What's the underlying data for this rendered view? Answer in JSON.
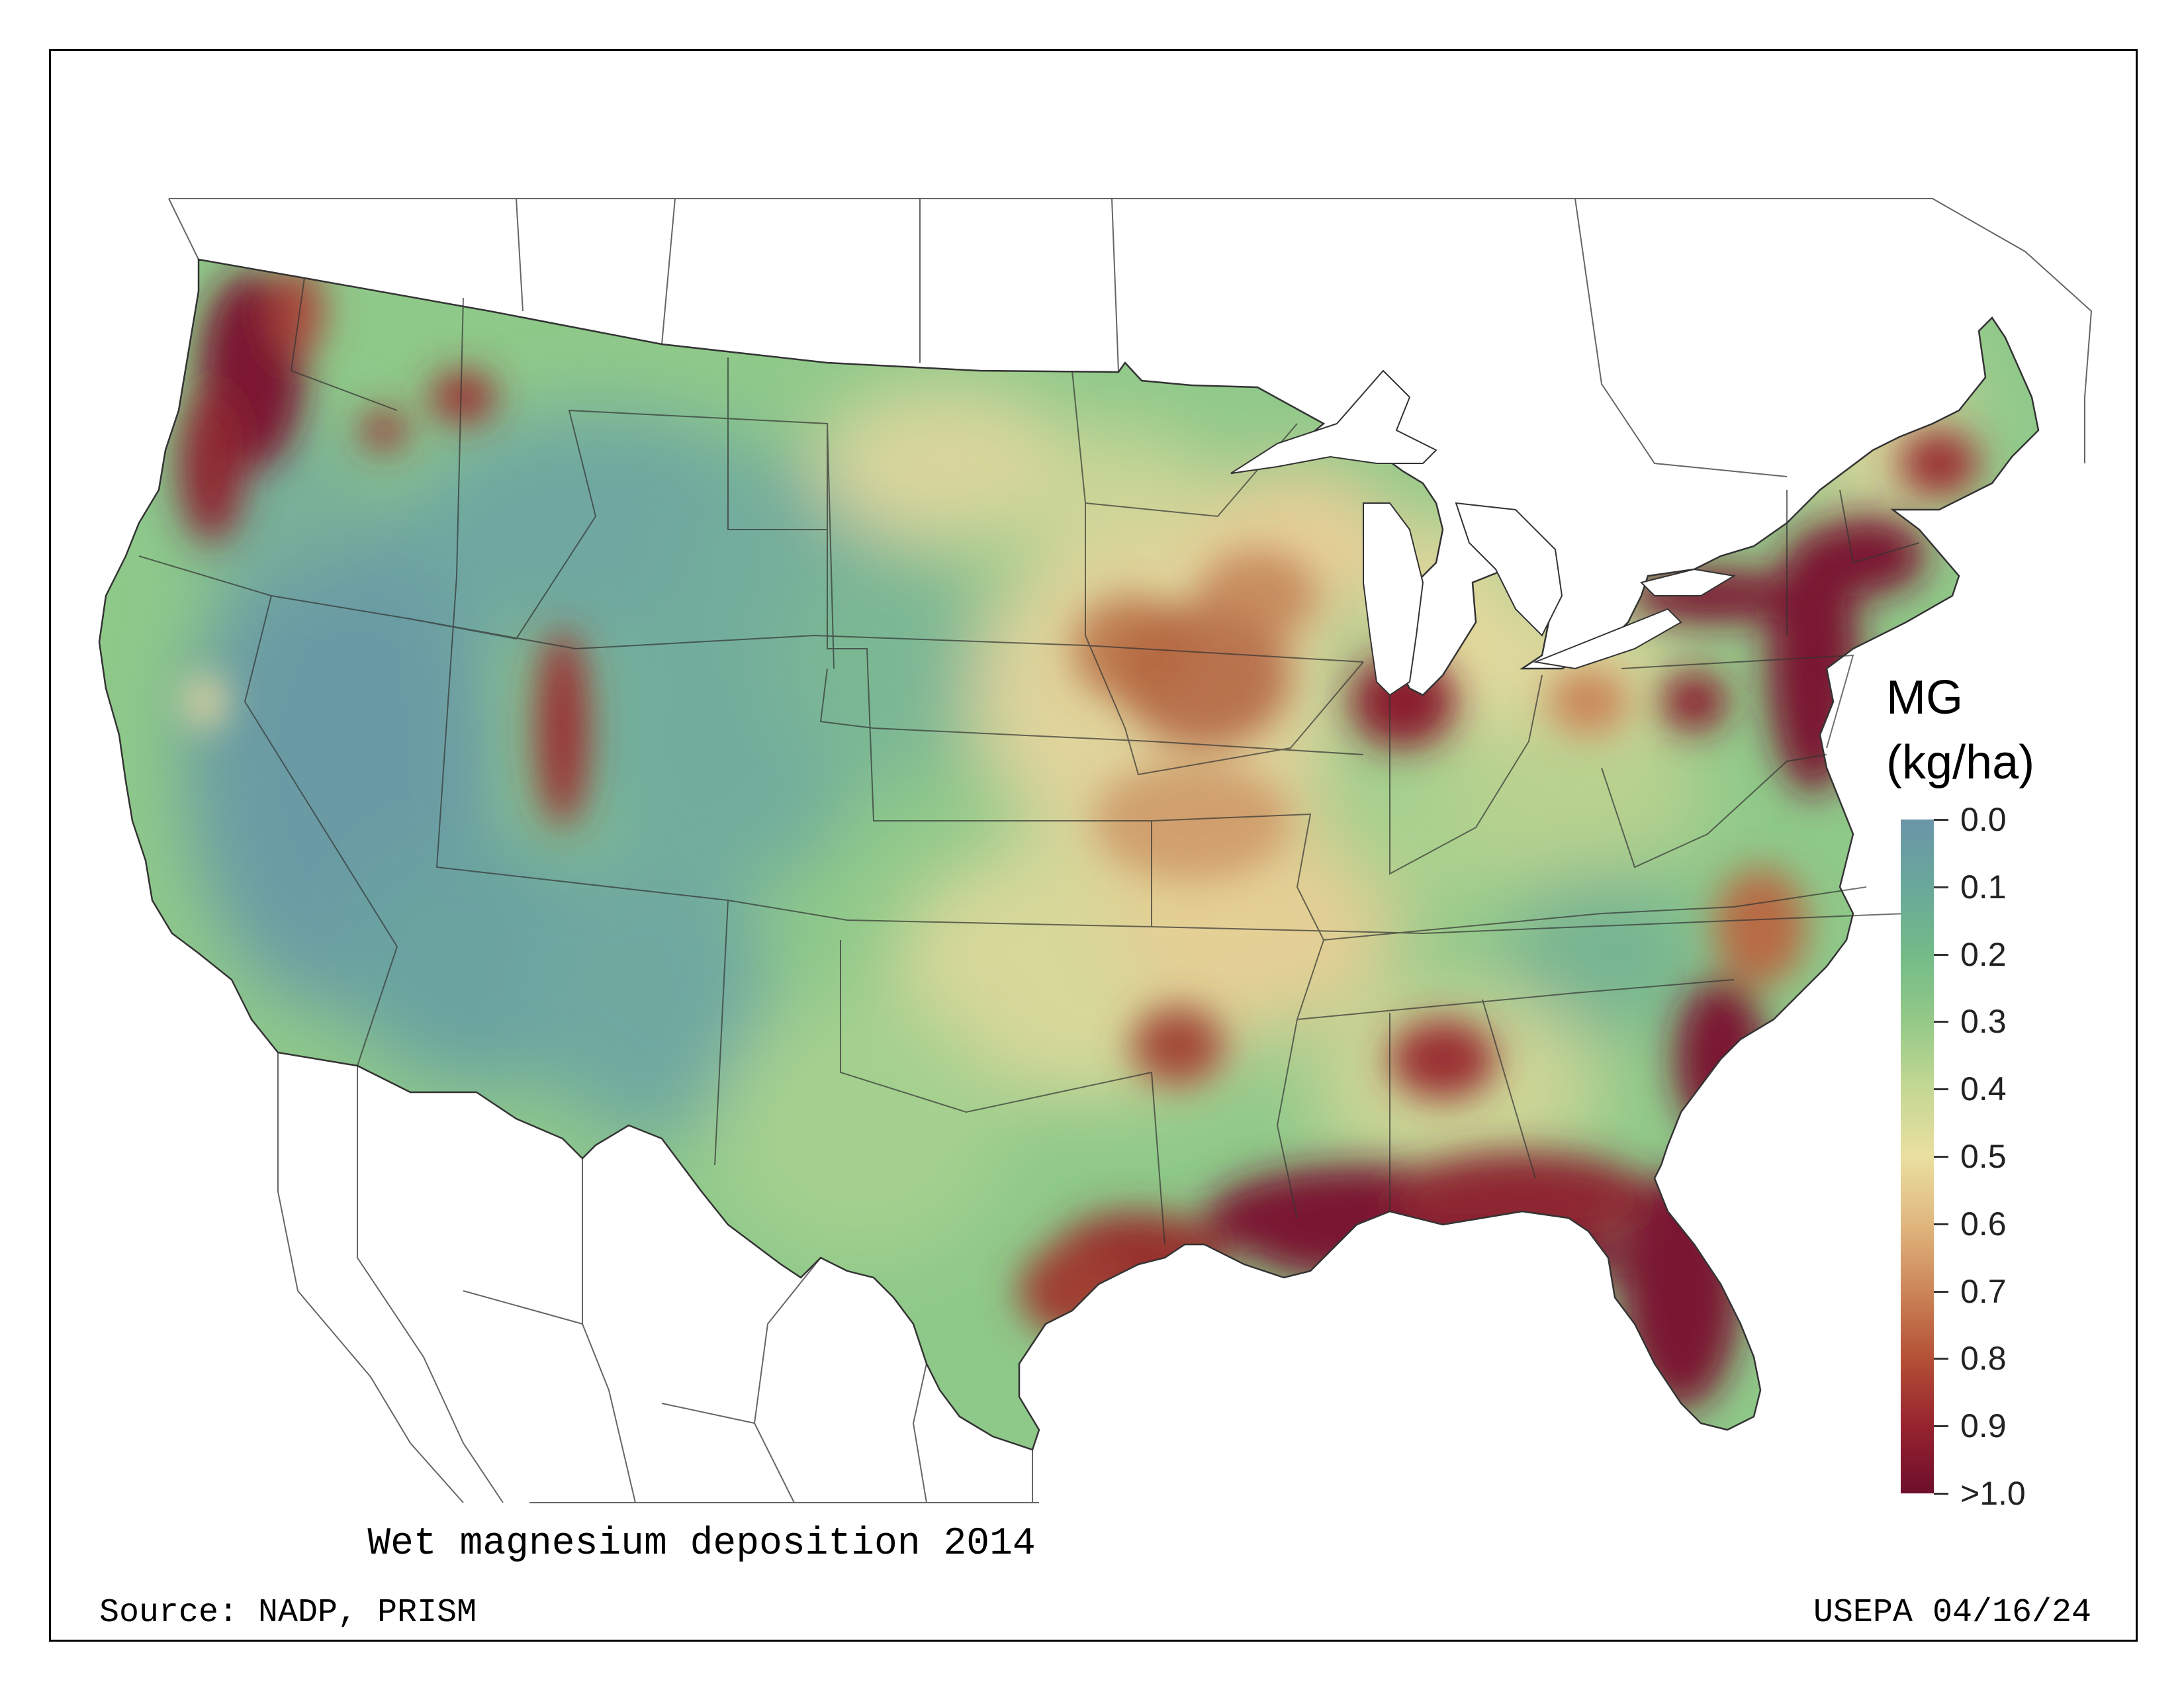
{
  "map": {
    "title": "Wet magnesium deposition 2014",
    "source": "Source: NADP, PRISM",
    "credit": "USEPA 04/16/24",
    "region": "Contiguous United States",
    "legend": {
      "variable": "MG",
      "unit": "(kg/ha)",
      "ticks": [
        "0.0",
        "0.1",
        "0.2",
        "0.3",
        "0.4",
        "0.5",
        "0.6",
        "0.7",
        "0.8",
        "0.9",
        ">1.0"
      ],
      "range": [
        0.0,
        1.0
      ],
      "colors": [
        "#6b95a8",
        "#69a89a",
        "#72bb88",
        "#95c988",
        "#c4d894",
        "#eadfa0",
        "#e0b77e",
        "#cc8557",
        "#b45036",
        "#96232e",
        "#6e0f2c"
      ]
    },
    "hotspots": [
      {
        "region": "Pacific Northwest coast",
        "value": 1.0
      },
      {
        "region": "Gulf Coast and Florida",
        "value": 1.0
      },
      {
        "region": "Mid-Atlantic and New England coast",
        "value": 1.0
      },
      {
        "region": "Lake Michigan south shore",
        "value": 1.0
      },
      {
        "region": "Upper Midwest (Iowa, Illinois)",
        "value": 0.8
      },
      {
        "region": "Utah Wasatch range",
        "value": 0.9
      },
      {
        "region": "Great Basin / Nevada",
        "value": 0.1
      },
      {
        "region": "Arizona / New Mexico",
        "value": 0.1
      },
      {
        "region": "Northern Plains / Montana",
        "value": 0.2
      }
    ]
  }
}
